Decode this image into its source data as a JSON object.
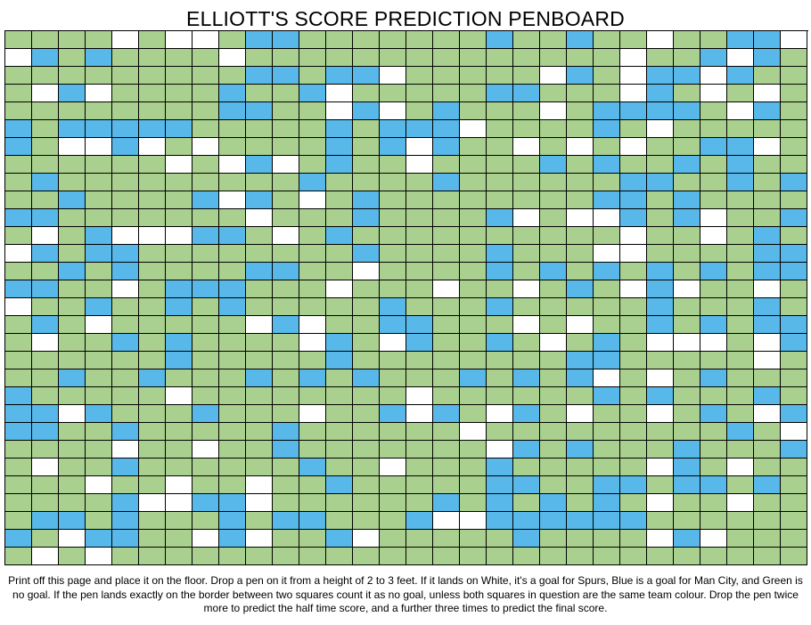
{
  "title": "ELLIOTT'S SCORE PREDICTION PENBOARD",
  "instructions": "Print off this page and place it on the floor. Drop a pen on it from a height of 2 to 3 feet. If it lands on White, it's a goal for Spurs, Blue is a goal for Man City, and Green is no goal. If the pen lands exactly on the border between two squares count it as no goal, unless both squares in question are the same team colour. Drop the pen twice more to predict the half time score, and a further three times to predict the final score.",
  "colors": {
    "green": "#a9d08e",
    "blue": "#57b8e9",
    "white": "#ffffff",
    "border": "#000000"
  },
  "legend": {
    "W": "white",
    "B": "blue",
    "G": "green"
  },
  "grid_columns": 30,
  "grid_rows": [
    "GGGGWGWWGBBGGGGGGGBGGBGGWGGBBW",
    "WBGBGGGGWGGGGGGGGGGGGGGWGGBWBG",
    "GGGGGGGGGBBGBBWGGGGGWBGWBBWBGG",
    "GWBWGGGGBGGBWGGGGGBBGGGWBGWGWG",
    "GGGGGGGGBBGGWBWGBGGGWGBBBBGWBG",
    "BGBBBBBGGGGGBGBBBWGGGGBGWGGGGG",
    "BGWWBWGWGGGGBGBWBGGWGWGWGGBBWG",
    "GGGGGGWGWBWGBGGWGGGGBGBGGBGBGG",
    "GBGGGGGGGGGBGGGGBGGGGGGBBGGBGB",
    "GGBGGGGBWBGWGBGGGGGGGGBBGBGGGG",
    "BBGGGGGGGWGGGBGGGGBWGWWBGBWGGB",
    "GWGBWWWBBGWGBGGGGGGGGGGWGGWGBG",
    "WBGBBGGGGGGGGBGGGGBGGGWWGGGGBB",
    "GGBGBGGGGBBGGWGGGGBGBGBGBGBGBB",
    "BBGGWGBBBGGGWGGGWGGWGBGWBWGGWG",
    "WGGBGGBGBGGGGGBGGGBGGGGGBGGGBG",
    "GBGWGGGGGWBWGGBBGGGWGWGGBGBGBB",
    "GWGGBGBGGGGWBGWBGGBGWGBGWWWGWB",
    "GGGGGGBGGGGGBGGGGGGGGBBGGGGGWG",
    "GGBGGBGGGBGBGBGGGBGBGBWGWGBGGG",
    "BGGGGGWGGGGGGGGWGGGGGGBGBGGGBG",
    "BBWBGGGBGGGWGGBWBGWBGWGGWGBGWB",
    "BBGGBGGGGGBGGGGGGWGGGGGGGGGBGW",
    "GGGGWGGWGGBGGGGGGGWBGBGGGBGGGB",
    "GWGGBGGGGGGBGGWGGGBGGGGGWBGWGG",
    "GGGWGGWGGWGGBGGGGGBBGGBBGBBGBG",
    "GGGGBWWBBWGGGGGGBGBGBGBGWGGWGG",
    "GBBGBGGGBGBBGGGBWWBBBBBBGGGGGG",
    "BGWBBGGWBWGGBWGGGGGBGGGGWBWGGG",
    "GWGWGGGGGGGGGGGGGGGGGGGGGGGGGG"
  ]
}
